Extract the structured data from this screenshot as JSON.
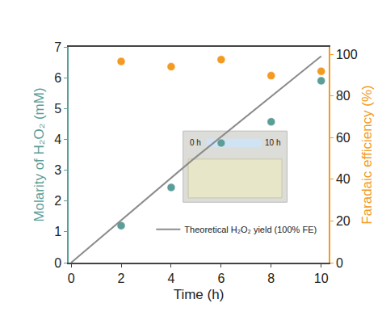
{
  "chart_data": {
    "type": "scatter",
    "xlabel": "Time (h)",
    "ylabel": "Molarity of H₂O₂ (mM)",
    "y2label": "Faradaic efficiency (%)",
    "x": [
      2,
      4,
      6,
      8,
      10
    ],
    "series": [
      {
        "type": "scatter",
        "color": "#5b9e99",
        "marker": "circle",
        "values": [
          1.2,
          2.44,
          3.88,
          4.57,
          5.9
        ]
      },
      {
        "type": "scatter",
        "color": "#f39a22",
        "marker": "circle",
        "axis": "y2",
        "values": [
          96.5,
          94,
          97.4,
          89.7,
          91.8
        ]
      },
      {
        "type": "line",
        "name": "Theoretical H₂O₂ yield (100% FE)",
        "color": "#8c8c8c",
        "line_style": "solid",
        "x": [
          0,
          4.8,
          10
        ],
        "values": [
          0,
          3.3,
          6.7
        ]
      }
    ],
    "xlim": [
      -0.1,
      10.3
    ],
    "xticks": [
      0,
      2,
      4,
      6,
      8,
      10
    ],
    "ylim": [
      0,
      7
    ],
    "yticks": [
      0,
      1,
      2,
      3,
      4,
      5,
      6,
      7
    ],
    "y2lim": [
      0,
      103.5
    ],
    "y2ticks": [
      0,
      20,
      40,
      60,
      80,
      100
    ],
    "grid": false,
    "legend": "lower right",
    "annotations": [
      {
        "text": "0 h"
      },
      {
        "text": "10 h"
      }
    ]
  }
}
